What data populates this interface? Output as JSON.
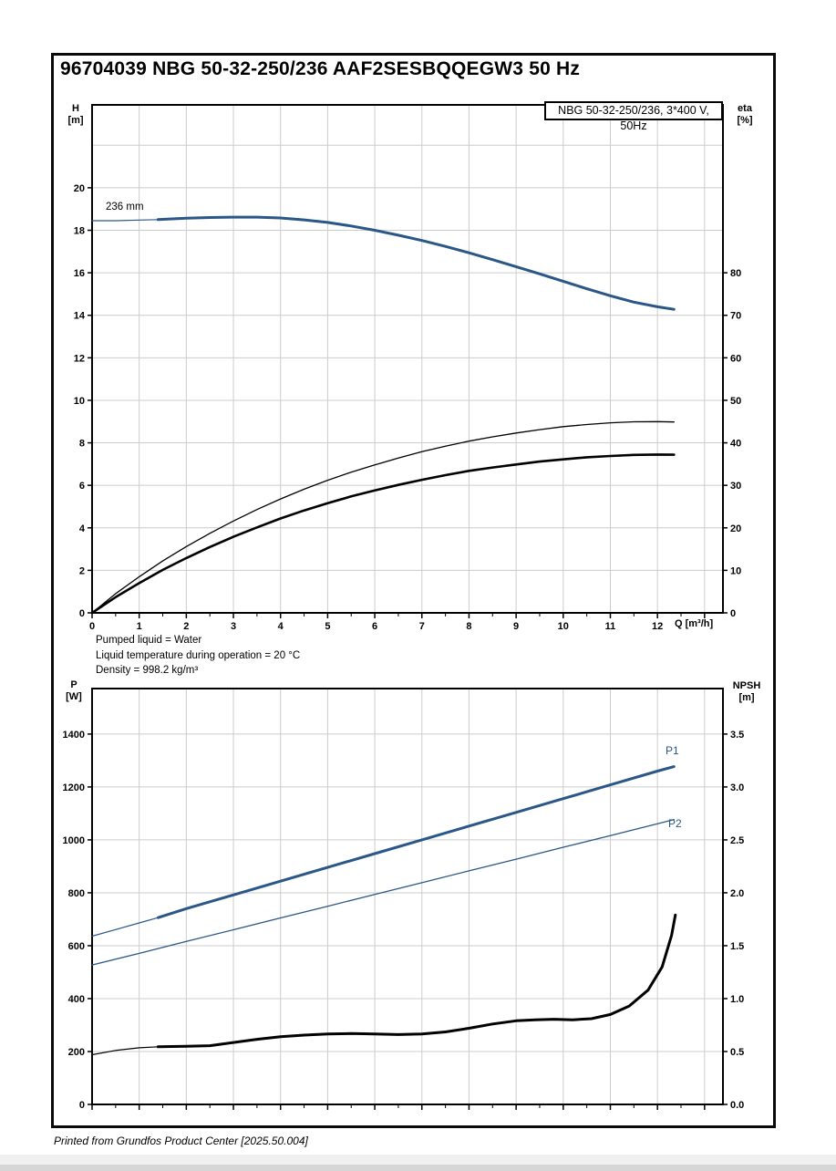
{
  "page": {
    "title": "96704039 NBG 50-32-250/236 AAF2SESBQQEGW3 50 Hz",
    "footer": "Printed from Grundfos Product Center [2025.50.004]",
    "impeller_label": "236 mm",
    "liquid_notes": [
      "Pumped liquid = Water",
      "Liquid temperature during operation = 20 °C",
      "Density = 998.2 kg/m³"
    ],
    "axis_labels": {
      "head": "H",
      "head_unit": "[m]",
      "eta": "eta",
      "eta_unit": "[%]",
      "power": "P",
      "power_unit": "[W]",
      "npsh": "NPSH",
      "npsh_unit": "[m]",
      "flow": "Q [m³/h]"
    },
    "series_labels": {
      "p1": "P1",
      "p2": "P2"
    },
    "colors": {
      "curve_blue": "#2a5788",
      "curve_black": "#000000",
      "grid": "#cccccc",
      "frame": "#000000"
    }
  },
  "chart_data": [
    {
      "type": "line",
      "name": "head-efficiency-chart",
      "title": "NBG 50-32-250/236, 3*400 V, 50Hz",
      "xlabel": "Q [m³/h]",
      "ylabel_left": "H [m]",
      "ylabel_right": "eta [%]",
      "xlim": [
        0,
        13.39
      ],
      "ylim_left": [
        0,
        23.9
      ],
      "ylim_right": [
        0,
        119.5
      ],
      "grid_x_max": 13,
      "xtick_major_max": 13,
      "xtick_minor_max": 12.5,
      "xtick_labels": [
        "0",
        "1",
        "2",
        "3",
        "4",
        "5",
        "6",
        "7",
        "8",
        "9",
        "10",
        "11",
        "12"
      ],
      "grid_y_left": [
        2,
        4,
        6,
        8,
        10,
        12,
        14,
        16,
        18,
        20,
        22
      ],
      "yticks_left": [
        0,
        2,
        4,
        6,
        8,
        10,
        12,
        14,
        16,
        18,
        20
      ],
      "ytick_labels_left": [
        "0",
        "2",
        "4",
        "6",
        "8",
        "10",
        "12",
        "14",
        "16",
        "18",
        "20"
      ],
      "yticks_right": [
        0,
        10,
        20,
        30,
        40,
        50,
        60,
        70,
        80
      ],
      "ytick_labels_right": [
        "0",
        "10",
        "20",
        "30",
        "40",
        "50",
        "60",
        "70",
        "80"
      ],
      "legend": "NBG 50-32-250/236, 3*400 V, 50Hz",
      "series": [
        {
          "name": "head-curve-236mm-lead-in",
          "axis": "left",
          "color": "#2a5788",
          "width": 1.2,
          "points": [
            [
              0,
              18.45
            ],
            [
              0.5,
              18.45
            ],
            [
              1,
              18.48
            ],
            [
              1.4,
              18.5
            ]
          ]
        },
        {
          "name": "head-curve-236mm",
          "axis": "left",
          "color": "#2a5788",
          "width": 3,
          "points": [
            [
              1.4,
              18.5
            ],
            [
              2,
              18.57
            ],
            [
              2.5,
              18.6
            ],
            [
              3,
              18.62
            ],
            [
              3.5,
              18.62
            ],
            [
              4,
              18.58
            ],
            [
              4.5,
              18.49
            ],
            [
              5,
              18.37
            ],
            [
              5.5,
              18.2
            ],
            [
              6,
              18.0
            ],
            [
              6.5,
              17.77
            ],
            [
              7,
              17.52
            ],
            [
              7.5,
              17.24
            ],
            [
              8,
              16.94
            ],
            [
              8.5,
              16.62
            ],
            [
              9,
              16.29
            ],
            [
              9.5,
              15.95
            ],
            [
              10,
              15.6
            ],
            [
              10.5,
              15.25
            ],
            [
              11,
              14.92
            ],
            [
              11.5,
              14.62
            ],
            [
              12,
              14.4
            ],
            [
              12.35,
              14.28
            ]
          ]
        },
        {
          "name": "eta-pump-curve",
          "axis": "right",
          "color": "#000000",
          "width": 1.3,
          "points": [
            [
              0,
              0
            ],
            [
              0.5,
              4.5
            ],
            [
              1,
              8.5
            ],
            [
              1.5,
              12.2
            ],
            [
              2,
              15.6
            ],
            [
              2.5,
              18.7
            ],
            [
              3,
              21.6
            ],
            [
              3.5,
              24.3
            ],
            [
              4,
              26.8
            ],
            [
              4.5,
              29.1
            ],
            [
              5,
              31.2
            ],
            [
              5.5,
              33.1
            ],
            [
              6,
              34.8
            ],
            [
              6.5,
              36.4
            ],
            [
              7,
              37.9
            ],
            [
              7.5,
              39.2
            ],
            [
              8,
              40.4
            ],
            [
              8.5,
              41.4
            ],
            [
              9,
              42.3
            ],
            [
              9.5,
              43.1
            ],
            [
              10,
              43.8
            ],
            [
              10.5,
              44.3
            ],
            [
              11,
              44.7
            ],
            [
              11.5,
              44.95
            ],
            [
              12,
              45.0
            ],
            [
              12.35,
              44.9
            ]
          ]
        },
        {
          "name": "eta-pump-motor-curve",
          "axis": "right",
          "color": "#000000",
          "width": 2.6,
          "points": [
            [
              0,
              0
            ],
            [
              0.5,
              3.7
            ],
            [
              1,
              7.0
            ],
            [
              1.5,
              10.1
            ],
            [
              2,
              12.9
            ],
            [
              2.5,
              15.5
            ],
            [
              3,
              17.9
            ],
            [
              3.5,
              20.1
            ],
            [
              4,
              22.2
            ],
            [
              4.5,
              24.1
            ],
            [
              5,
              25.8
            ],
            [
              5.5,
              27.4
            ],
            [
              6,
              28.8
            ],
            [
              6.5,
              30.1
            ],
            [
              7,
              31.3
            ],
            [
              7.5,
              32.4
            ],
            [
              8,
              33.4
            ],
            [
              8.5,
              34.2
            ],
            [
              9,
              34.9
            ],
            [
              9.5,
              35.6
            ],
            [
              10,
              36.1
            ],
            [
              10.5,
              36.6
            ],
            [
              11,
              36.9
            ],
            [
              11.5,
              37.15
            ],
            [
              12,
              37.25
            ],
            [
              12.35,
              37.2
            ]
          ]
        }
      ]
    },
    {
      "type": "line",
      "name": "power-npsh-chart",
      "title": "",
      "xlabel": "",
      "ylabel_left": "P [W]",
      "ylabel_right": "NPSH [m]",
      "xlim": [
        0,
        13.39
      ],
      "ylim_left": [
        0,
        1572
      ],
      "ylim_right": [
        0,
        3.93
      ],
      "grid_x_max": 13,
      "xtick_major_max": 13,
      "xtick_minor_max": 12.5,
      "xtick_labels": null,
      "grid_y_left": [
        200,
        400,
        600,
        800,
        1000,
        1200,
        1400
      ],
      "yticks_left": [
        0,
        200,
        400,
        600,
        800,
        1000,
        1200,
        1400
      ],
      "ytick_labels_left": [
        "0",
        "200",
        "400",
        "600",
        "800",
        "1000",
        "1200",
        "1400"
      ],
      "yticks_right": [
        0,
        0.5,
        1.0,
        1.5,
        2.0,
        2.5,
        3.0,
        3.5
      ],
      "ytick_labels_right": [
        "0.0",
        "0.5",
        "1.0",
        "1.5",
        "2.0",
        "2.5",
        "3.0",
        "3.5"
      ],
      "legend": null,
      "series": [
        {
          "name": "p1-power-curve-lead-in",
          "axis": "left",
          "color": "#2a5788",
          "width": 1.2,
          "points": [
            [
              0,
              636
            ],
            [
              0.5,
              661
            ],
            [
              1,
              686
            ],
            [
              1.4,
              706
            ]
          ]
        },
        {
          "name": "p1-power-curve",
          "axis": "left",
          "color": "#2a5788",
          "width": 3,
          "points": [
            [
              1.4,
              706
            ],
            [
              2,
              740
            ],
            [
              3,
              792
            ],
            [
              4,
              844
            ],
            [
              5,
              896
            ],
            [
              6,
              948
            ],
            [
              7,
              1000
            ],
            [
              8,
              1052
            ],
            [
              9,
              1104
            ],
            [
              10,
              1156
            ],
            [
              11,
              1208
            ],
            [
              12,
              1260
            ],
            [
              12.35,
              1277
            ]
          ]
        },
        {
          "name": "p2-power-curve",
          "axis": "left",
          "color": "#2a5788",
          "width": 1.3,
          "points": [
            [
              0,
              527
            ],
            [
              1,
              571
            ],
            [
              2,
              616
            ],
            [
              3,
              660
            ],
            [
              4,
              705
            ],
            [
              5,
              749
            ],
            [
              6,
              794
            ],
            [
              7,
              838
            ],
            [
              8,
              883
            ],
            [
              9,
              927
            ],
            [
              10,
              972
            ],
            [
              11,
              1016
            ],
            [
              12,
              1061
            ],
            [
              12.35,
              1077
            ]
          ]
        },
        {
          "name": "npsh-curve-lead-in",
          "axis": "right",
          "color": "#000000",
          "width": 1.2,
          "points": [
            [
              0,
              0.47
            ],
            [
              0.5,
              0.51
            ],
            [
              1,
              0.535
            ],
            [
              1.4,
              0.545
            ]
          ]
        },
        {
          "name": "npsh-curve",
          "axis": "right",
          "color": "#000000",
          "width": 3,
          "points": [
            [
              1.4,
              0.545
            ],
            [
              2,
              0.55
            ],
            [
              2.5,
              0.555
            ],
            [
              3,
              0.585
            ],
            [
              3.5,
              0.615
            ],
            [
              4,
              0.64
            ],
            [
              4.5,
              0.655
            ],
            [
              5,
              0.665
            ],
            [
              5.5,
              0.67
            ],
            [
              6,
              0.665
            ],
            [
              6.5,
              0.66
            ],
            [
              7,
              0.665
            ],
            [
              7.5,
              0.685
            ],
            [
              8,
              0.72
            ],
            [
              8.5,
              0.76
            ],
            [
              9,
              0.79
            ],
            [
              9.4,
              0.8
            ],
            [
              9.8,
              0.805
            ],
            [
              10.2,
              0.8
            ],
            [
              10.6,
              0.81
            ],
            [
              11,
              0.85
            ],
            [
              11.4,
              0.93
            ],
            [
              11.8,
              1.08
            ],
            [
              12.1,
              1.3
            ],
            [
              12.3,
              1.6
            ],
            [
              12.38,
              1.79
            ]
          ]
        }
      ]
    }
  ]
}
